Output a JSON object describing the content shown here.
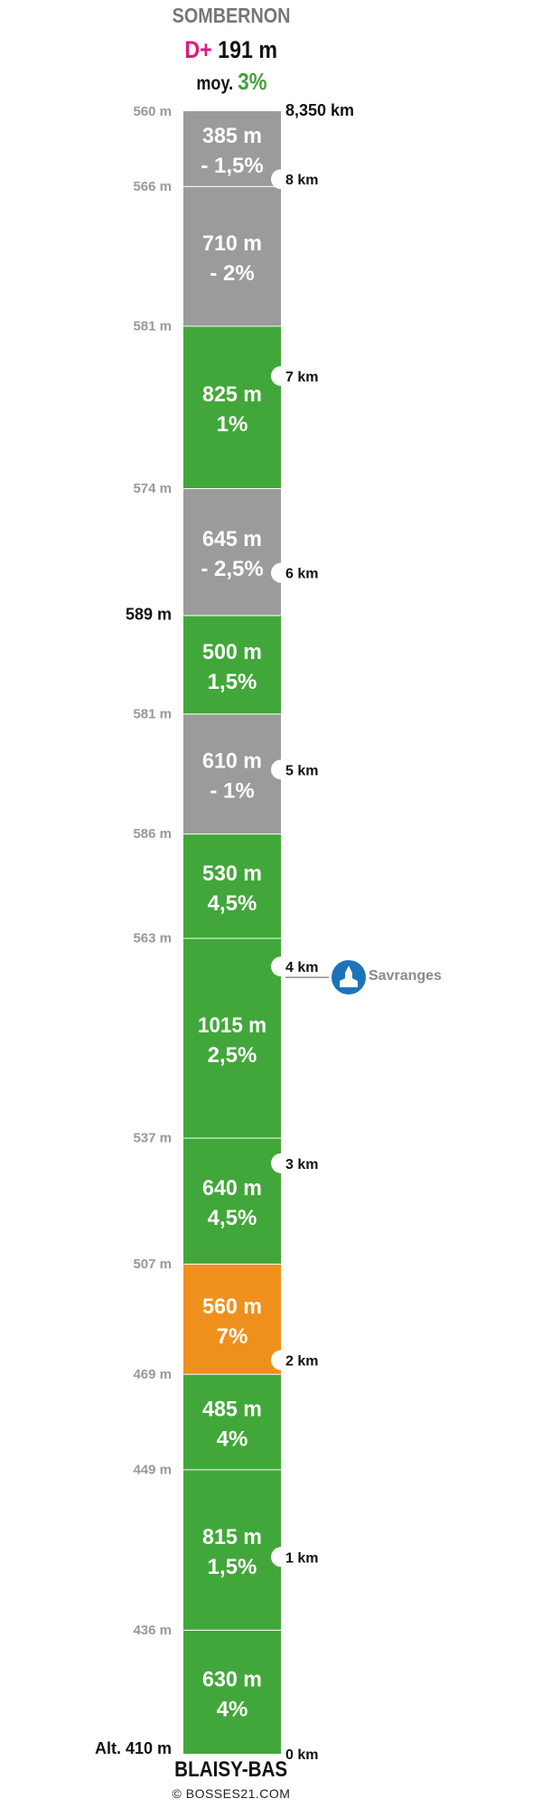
{
  "header": {
    "title": "SOMBERNON",
    "dplus_label": "D+",
    "dplus_value": "191 m",
    "avg_label": "moy.",
    "avg_value": "3%"
  },
  "footer": {
    "title": "BLAISY-BAS",
    "credit": "© BOSSES21.COM"
  },
  "colors": {
    "flat": "#9b9b9b",
    "moderate": "#42a73a",
    "steep": "#f0901c",
    "accent": "#e0197d",
    "poi": "#1d73b8"
  },
  "chart_data": {
    "type": "bar",
    "title": "SOMBERNON",
    "total_km": 8.35,
    "total_km_label": "8,350 km",
    "segments": [
      {
        "length_m": 630,
        "length_label": "630 m",
        "grade_label": "4%",
        "color": "moderate",
        "start_alt": "Alt. 410 m"
      },
      {
        "length_m": 815,
        "length_label": "815 m",
        "grade_label": "1,5%",
        "color": "moderate",
        "start_alt": "436 m"
      },
      {
        "length_m": 485,
        "length_label": "485 m",
        "grade_label": "4%",
        "color": "moderate",
        "start_alt": "449 m"
      },
      {
        "length_m": 560,
        "length_label": "560 m",
        "grade_label": "7%",
        "color": "steep",
        "start_alt": "469 m"
      },
      {
        "length_m": 640,
        "length_label": "640 m",
        "grade_label": "4,5%",
        "color": "moderate",
        "start_alt": "507 m"
      },
      {
        "length_m": 1015,
        "length_label": "1015 m",
        "grade_label": "2,5%",
        "color": "moderate",
        "start_alt": "537 m"
      },
      {
        "length_m": 530,
        "length_label": "530 m",
        "grade_label": "4,5%",
        "color": "moderate",
        "start_alt": "563 m"
      },
      {
        "length_m": 610,
        "length_label": "610 m",
        "grade_label": "- 1%",
        "color": "flat",
        "start_alt": "586 m"
      },
      {
        "length_m": 500,
        "length_label": "500 m",
        "grade_label": "1,5%",
        "color": "moderate",
        "start_alt": "581 m"
      },
      {
        "length_m": 645,
        "length_label": "645 m",
        "grade_label": "- 2,5%",
        "color": "flat",
        "start_alt": "589 m"
      },
      {
        "length_m": 825,
        "length_label": "825 m",
        "grade_label": "1%",
        "color": "moderate",
        "start_alt": "574 m"
      },
      {
        "length_m": 710,
        "length_label": "710 m",
        "grade_label": "- 2%",
        "color": "flat",
        "start_alt": "581 m"
      },
      {
        "length_m": 385,
        "length_label": "385 m",
        "grade_label": "- 1,5%",
        "color": "flat",
        "start_alt": "566 m"
      }
    ],
    "top_alt": "560 m",
    "highlight_alt": "589 m",
    "base_alt": "Alt. 410 m",
    "km_markers": [
      {
        "km": 0,
        "label": "0 km"
      },
      {
        "km": 1,
        "label": "1 km"
      },
      {
        "km": 2,
        "label": "2 km"
      },
      {
        "km": 3,
        "label": "3 km"
      },
      {
        "km": 4,
        "label": "4 km"
      },
      {
        "km": 5,
        "label": "5 km"
      },
      {
        "km": 6,
        "label": "6 km"
      },
      {
        "km": 7,
        "label": "7 km"
      },
      {
        "km": 8,
        "label": "8 km"
      }
    ],
    "poi": {
      "name": "Savranges",
      "km": 3.945,
      "icon": "church-icon"
    }
  }
}
